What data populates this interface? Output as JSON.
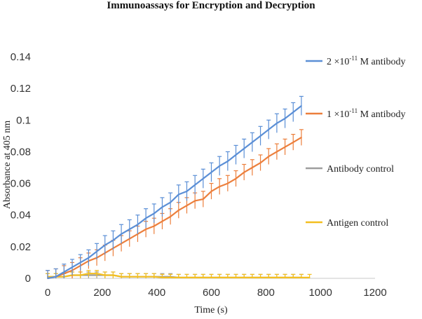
{
  "chart_data": {
    "type": "line",
    "title": "Immunoassays for Encryption and Decryption",
    "xlabel": "Time (s)",
    "ylabel": "Absorbance at 405 nm",
    "xlim": [
      0,
      1200
    ],
    "ylim": [
      0,
      0.14
    ],
    "xticks": [
      "0",
      "200",
      "400",
      "600",
      "800",
      "1000",
      "1200"
    ],
    "yticks": [
      "0",
      "0.02",
      "0.04",
      "0.06",
      "0.08",
      "0.1",
      "0.12",
      "0.14"
    ],
    "legend_position": "right",
    "grid": false,
    "series": [
      {
        "name": "2 ×10-11 M antibody",
        "name_parts": {
          "pre": "2 ×10",
          "sup": "-11",
          "post": " M antibody"
        },
        "color": "#5b8fd6",
        "x": [
          0,
          30,
          60,
          90,
          120,
          150,
          180,
          210,
          240,
          270,
          300,
          330,
          360,
          390,
          420,
          450,
          480,
          510,
          540,
          570,
          600,
          630,
          660,
          690,
          720,
          750,
          780,
          810,
          840,
          870,
          900,
          930
        ],
        "y": [
          0.0,
          0.001,
          0.004,
          0.007,
          0.01,
          0.013,
          0.017,
          0.021,
          0.024,
          0.028,
          0.031,
          0.034,
          0.038,
          0.041,
          0.045,
          0.048,
          0.053,
          0.055,
          0.059,
          0.063,
          0.067,
          0.071,
          0.074,
          0.078,
          0.082,
          0.086,
          0.09,
          0.094,
          0.098,
          0.101,
          0.105,
          0.109
        ],
        "error": [
          0.005,
          0.005,
          0.005,
          0.005,
          0.005,
          0.005,
          0.005,
          0.006,
          0.006,
          0.006,
          0.006,
          0.006,
          0.006,
          0.006,
          0.006,
          0.006,
          0.006,
          0.006,
          0.006,
          0.006,
          0.006,
          0.006,
          0.006,
          0.006,
          0.006,
          0.006,
          0.006,
          0.006,
          0.006,
          0.006,
          0.006,
          0.006
        ]
      },
      {
        "name": "1 ×10-11 M antibody",
        "name_parts": {
          "pre": "1 ×10",
          "sup": "-11",
          "post": " M antibody"
        },
        "color": "#ec7f3c",
        "x": [
          0,
          30,
          60,
          90,
          120,
          150,
          180,
          210,
          240,
          270,
          300,
          330,
          360,
          390,
          420,
          450,
          480,
          510,
          540,
          570,
          600,
          630,
          660,
          690,
          720,
          750,
          780,
          810,
          840,
          870,
          900,
          930
        ],
        "y": [
          0.0,
          0.001,
          0.003,
          0.005,
          0.008,
          0.011,
          0.013,
          0.016,
          0.019,
          0.022,
          0.025,
          0.028,
          0.031,
          0.033,
          0.036,
          0.039,
          0.043,
          0.046,
          0.049,
          0.05,
          0.055,
          0.058,
          0.06,
          0.063,
          0.067,
          0.07,
          0.073,
          0.077,
          0.08,
          0.083,
          0.086,
          0.089
        ],
        "error": [
          0.005,
          0.005,
          0.005,
          0.005,
          0.005,
          0.005,
          0.005,
          0.005,
          0.005,
          0.005,
          0.005,
          0.005,
          0.005,
          0.005,
          0.005,
          0.005,
          0.005,
          0.005,
          0.005,
          0.005,
          0.005,
          0.005,
          0.005,
          0.005,
          0.005,
          0.005,
          0.005,
          0.005,
          0.005,
          0.005,
          0.005,
          0.005
        ]
      },
      {
        "name": "Antibody control",
        "color": "#9e9e9e",
        "x": [
          0,
          30,
          60,
          90,
          120,
          150,
          180,
          210,
          240,
          270,
          300,
          330,
          360,
          390,
          420,
          450,
          480,
          510,
          540,
          570,
          600,
          630,
          660,
          690,
          720,
          750,
          780,
          810,
          840,
          870,
          900,
          930
        ],
        "y": [
          0.001,
          0.001,
          0.001,
          0.002,
          0.002,
          0.002,
          0.002,
          0.002,
          0.002,
          0.001,
          0.001,
          0.001,
          0.001,
          0.001,
          0.001,
          0.001,
          0.0005,
          0.0005,
          0.0005,
          0.0005,
          0.0005,
          0.0005,
          0.0005,
          0.0005,
          0.0005,
          0.0005,
          0.0005,
          0.0005,
          0.0005,
          0.0005,
          0.0005,
          0.0005
        ],
        "error": [
          0.002,
          0.002,
          0.002,
          0.002,
          0.002,
          0.002,
          0.002,
          0.002,
          0.002,
          0.002,
          0.002,
          0.002,
          0.002,
          0.002,
          0.002,
          0.002,
          0.002,
          0.002,
          0.002,
          0.002,
          0.002,
          0.002,
          0.002,
          0.002,
          0.002,
          0.002,
          0.002,
          0.002,
          0.002,
          0.002,
          0.002,
          0.002
        ]
      },
      {
        "name": "Antigen control",
        "color": "#f3bf20",
        "x": [
          0,
          30,
          60,
          90,
          120,
          150,
          180,
          210,
          240,
          270,
          300,
          330,
          360,
          390,
          420,
          450,
          480,
          510,
          540,
          570,
          600,
          630,
          660,
          690,
          720,
          750,
          780,
          810,
          840,
          870,
          900,
          930,
          960
        ],
        "y": [
          0.001,
          0.001,
          0.001,
          0.002,
          0.002,
          0.003,
          0.003,
          0.002,
          0.002,
          0.001,
          0.001,
          0.001,
          0.001,
          0.001,
          0.0005,
          0.0005,
          0.0005,
          0.0005,
          0.0005,
          0.0005,
          0.0005,
          0.0005,
          0.0005,
          0.0005,
          0.0005,
          0.0005,
          0.0005,
          0.0005,
          0.0005,
          0.0005,
          0.0005,
          0.0005,
          0.0005
        ],
        "error": [
          0.002,
          0.002,
          0.002,
          0.002,
          0.002,
          0.002,
          0.002,
          0.002,
          0.002,
          0.002,
          0.002,
          0.002,
          0.002,
          0.002,
          0.002,
          0.002,
          0.002,
          0.002,
          0.002,
          0.002,
          0.002,
          0.002,
          0.002,
          0.002,
          0.002,
          0.002,
          0.002,
          0.002,
          0.002,
          0.002,
          0.002,
          0.002,
          0.002
        ]
      }
    ]
  }
}
